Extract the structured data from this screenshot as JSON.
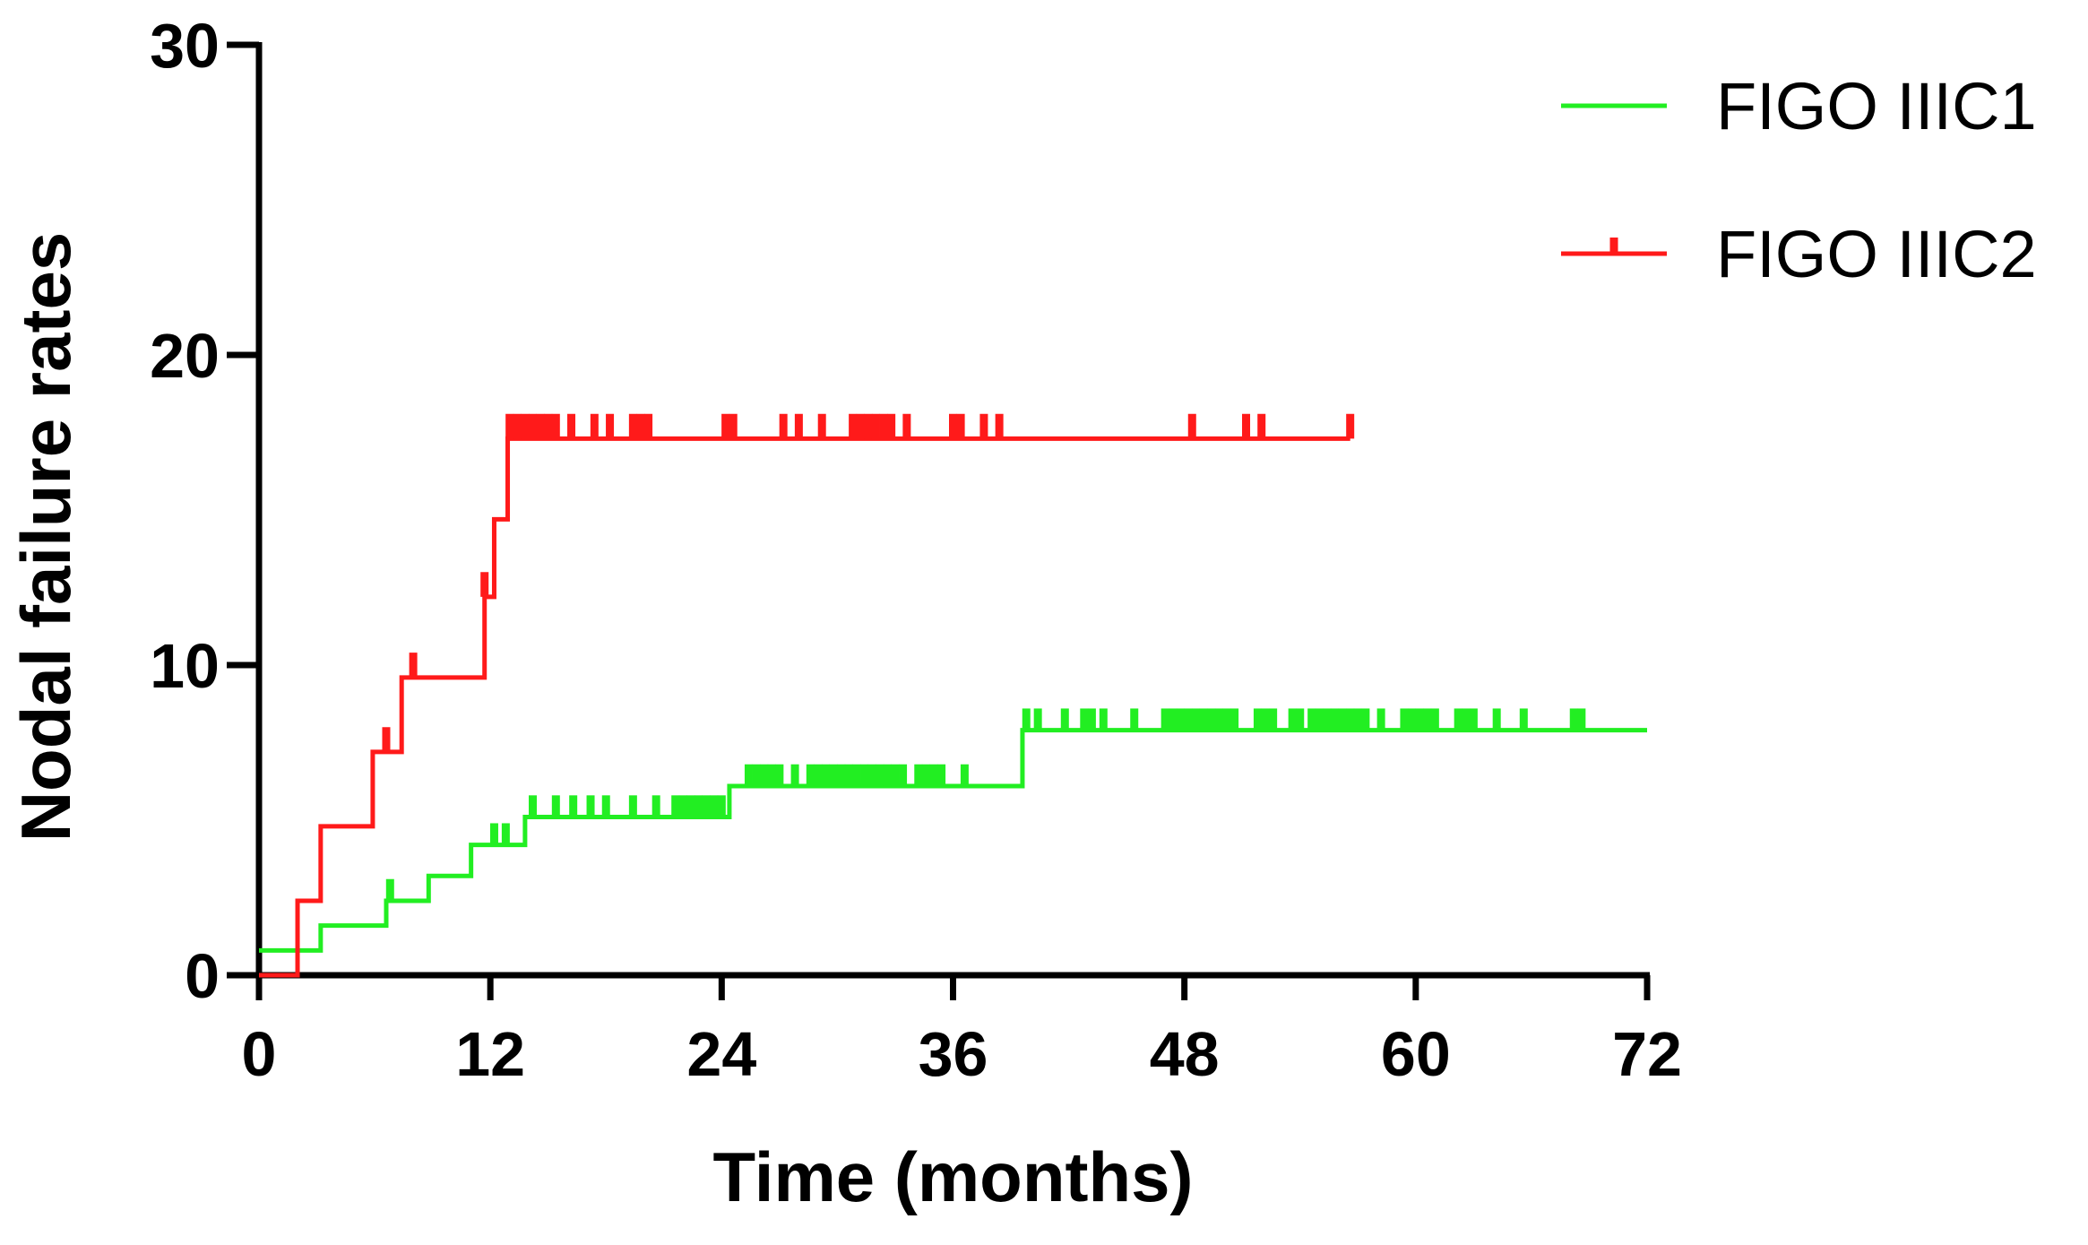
{
  "chart_data": {
    "type": "line",
    "title": "",
    "xlabel": "Time (months)",
    "ylabel": "Nodal failure rates",
    "xlim": [
      0,
      72
    ],
    "ylim": [
      0,
      30
    ],
    "xticks": [
      0,
      12,
      24,
      36,
      48,
      60,
      72
    ],
    "yticks": [
      0,
      10,
      20,
      30
    ],
    "grid": false,
    "legend_position": "top-right",
    "series": [
      {
        "name": "FIGO IIIC1",
        "color": "#22ee22",
        "step_x": [
          0,
          3.2,
          6.6,
          8.8,
          11.0,
          13.8,
          24.4,
          39.6,
          72
        ],
        "step_y": [
          0.8,
          1.6,
          2.4,
          3.2,
          4.2,
          5.1,
          6.1,
          7.9,
          7.9
        ],
        "censored": [
          6.8,
          12.2,
          12.8,
          14.2,
          15.4,
          16.3,
          17.2,
          18.0,
          19.4,
          20.6,
          21.6,
          22.0,
          22.4,
          22.8,
          23.2,
          23.6,
          24.0,
          25.4,
          25.8,
          26.2,
          26.6,
          27.0,
          27.8,
          28.6,
          29.0,
          29.4,
          29.8,
          30.2,
          30.6,
          31.0,
          31.4,
          31.8,
          32.2,
          32.6,
          33.0,
          33.4,
          34.2,
          34.6,
          35.0,
          35.4,
          36.6,
          39.8,
          40.4,
          41.8,
          42.8,
          43.2,
          43.8,
          45.4,
          47.0,
          47.4,
          47.8,
          48.2,
          48.6,
          49.0,
          49.4,
          49.8,
          50.2,
          50.6,
          51.8,
          52.2,
          52.6,
          53.6,
          54.0,
          54.6,
          55.0,
          55.4,
          55.8,
          56.2,
          56.6,
          57.0,
          57.4,
          58.2,
          59.4,
          59.8,
          60.2,
          60.6,
          61.0,
          62.2,
          62.6,
          63.0,
          64.2,
          65.6,
          68.2,
          68.6
        ],
        "censor_mark_height": 0.7
      },
      {
        "name": "FIGO IIIC2",
        "color": "#ff1a1a",
        "step_x": [
          0,
          2.0,
          3.2,
          5.9,
          7.4,
          11.7,
          12.2,
          12.9,
          56.6
        ],
        "step_y": [
          0,
          2.4,
          4.8,
          7.2,
          9.6,
          12.2,
          14.7,
          17.3,
          17.3
        ],
        "censored": [
          6.6,
          8.0,
          11.7,
          13.0,
          13.4,
          13.8,
          14.2,
          14.6,
          15.0,
          15.4,
          16.2,
          17.4,
          18.2,
          19.4,
          19.8,
          20.2,
          24.2,
          24.6,
          27.2,
          28.0,
          29.2,
          30.8,
          31.2,
          31.6,
          32.0,
          32.4,
          32.8,
          33.6,
          36.0,
          36.4,
          37.6,
          38.4,
          48.4,
          51.2,
          52.0,
          56.6
        ],
        "censor_mark_height": 0.8
      }
    ]
  }
}
